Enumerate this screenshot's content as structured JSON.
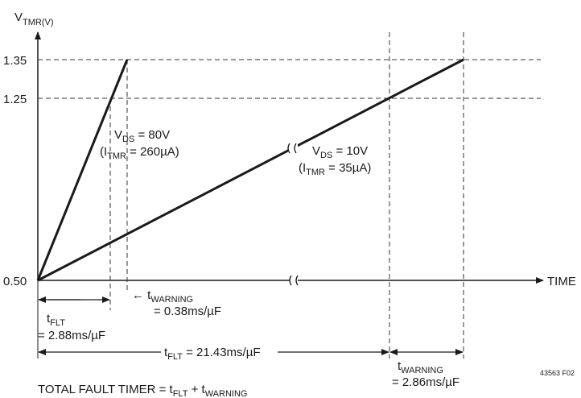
{
  "y_axis_label": {
    "main": "V",
    "sub": "TMR(V)"
  },
  "x_axis_label": "TIME",
  "y_ticks": [
    "1.35",
    "1.25",
    "0.50"
  ],
  "vds80": {
    "line1_pre": "V",
    "line1_sub": "DS",
    "line1_post": " = 80V",
    "line2_pre": "(I",
    "line2_sub": "TMR",
    "line2_post": " = 260µA)"
  },
  "vds10": {
    "line1_pre": "V",
    "line1_sub": "DS",
    "line1_post": " = 10V",
    "line2_pre": "(I",
    "line2_sub": "TMR",
    "line2_post": " = 35µA)"
  },
  "t_flt_80": {
    "pre": "t",
    "sub": "FLT",
    "value": "= 2.88ms/µF"
  },
  "t_warning_80": {
    "arrow": "← t",
    "sub": "WARNING",
    "value": "= 0.38ms/µF"
  },
  "t_flt_10": {
    "pre": "t",
    "sub": "FLT",
    "post": " = 21.43ms/µF"
  },
  "t_warning_10": {
    "pre": "t",
    "sub": "WARNING",
    "value": "= 2.86ms/µF"
  },
  "total": {
    "pre": "TOTAL FAULT TIMER = t",
    "sub1": "FLT",
    "mid": " + t",
    "sub2": "WARNING"
  },
  "figure_id": "43563 F02"
}
